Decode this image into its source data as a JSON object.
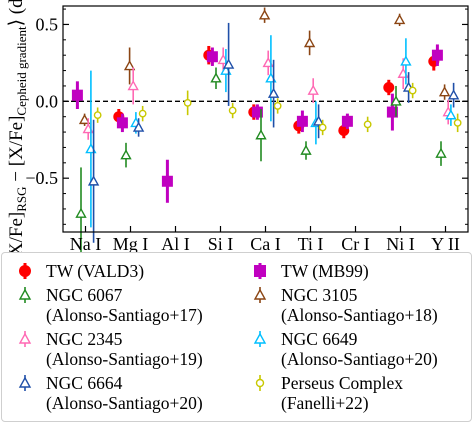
{
  "chart_data": {
    "type": "scatter",
    "ylabel": "⟨[X/Fe]RSG − [X/Fe]Cepheid gradient⟩ (dex)",
    "ylabel_parts": {
      "open": "⟨[X/Fe]",
      "sub1": "RSG",
      "mid": " − [X/Fe]",
      "sub2": "Cepheid gradient",
      "close": "⟩ (dex)"
    },
    "ylim": [
      -0.85,
      0.62
    ],
    "yticks": [
      -0.5,
      0.0,
      0.5
    ],
    "ytick_labels": [
      "−0.5",
      "0.0",
      "0.5"
    ],
    "categories": [
      "Na I",
      "Mg I",
      "Al I",
      "Si I",
      "Ca I",
      "Ti I",
      "Cr I",
      "Ni I",
      "Y II"
    ],
    "zero_line": "dashed",
    "series": [
      {
        "name": "TW (VALD3)",
        "color": "#ff0000",
        "marker": "circle",
        "points": [
          {
            "cat": 1,
            "y": -0.1,
            "err": 0.05
          },
          {
            "cat": 3,
            "y": 0.3,
            "err": 0.06
          },
          {
            "cat": 4,
            "y": -0.07,
            "err": 0.05
          },
          {
            "cat": 5,
            "y": -0.16,
            "err": 0.05
          },
          {
            "cat": 6,
            "y": -0.19,
            "err": 0.05
          },
          {
            "cat": 7,
            "y": 0.09,
            "err": 0.05
          },
          {
            "cat": 8,
            "y": 0.26,
            "err": 0.06
          }
        ]
      },
      {
        "name": "TW (MB99)",
        "color": "#c000c0",
        "marker": "square",
        "points": [
          {
            "cat": 0,
            "y": 0.04,
            "err": 0.09
          },
          {
            "cat": 1,
            "y": -0.14,
            "err": 0.06
          },
          {
            "cat": 2,
            "y": -0.52,
            "err": 0.14
          },
          {
            "cat": 3,
            "y": 0.29,
            "err": 0.06
          },
          {
            "cat": 4,
            "y": -0.07,
            "err": 0.05
          },
          {
            "cat": 5,
            "y": -0.13,
            "err": 0.07
          },
          {
            "cat": 6,
            "y": -0.13,
            "err": 0.05
          },
          {
            "cat": 7,
            "y": -0.07,
            "err": 0.12
          },
          {
            "cat": 8,
            "y": 0.3,
            "err": 0.07
          }
        ]
      },
      {
        "name": "NGC 6067 (Alonso-Santiago+17)",
        "color": "#228b22",
        "marker": "triangle-up",
        "points": [
          {
            "cat": 0,
            "y": -0.73,
            "err": 0.3
          },
          {
            "cat": 1,
            "y": -0.35,
            "err": 0.08
          },
          {
            "cat": 3,
            "y": 0.15,
            "err": 0.07
          },
          {
            "cat": 4,
            "y": -0.22,
            "err": 0.17
          },
          {
            "cat": 5,
            "y": -0.32,
            "err": 0.06
          },
          {
            "cat": 7,
            "y": 0.0,
            "err": 0.1
          },
          {
            "cat": 8,
            "y": -0.34,
            "err": 0.08
          }
        ]
      },
      {
        "name": "NGC 3105 (Alonso-Santiago+18)",
        "color": "#8b4513",
        "marker": "triangle-up",
        "points": [
          {
            "cat": 0,
            "y": -0.12,
            "err": 0.04
          },
          {
            "cat": 1,
            "y": 0.23,
            "err": 0.12
          },
          {
            "cat": 4,
            "y": 0.56,
            "err": 0.05
          },
          {
            "cat": 5,
            "y": 0.38,
            "err": 0.08
          },
          {
            "cat": 7,
            "y": 0.53,
            "err": 0.04
          },
          {
            "cat": 8,
            "y": 0.06,
            "err": 0.05
          }
        ]
      },
      {
        "name": "NGC 2345 (Alonso-Santiago+19)",
        "color": "#ff69b4",
        "marker": "triangle-up",
        "points": [
          {
            "cat": 0,
            "y": -0.18,
            "err": 0.07
          },
          {
            "cat": 1,
            "y": 0.1,
            "err": 0.12
          },
          {
            "cat": 3,
            "y": 0.27,
            "err": 0.08
          },
          {
            "cat": 4,
            "y": 0.25,
            "err": 0.08
          },
          {
            "cat": 5,
            "y": 0.07,
            "err": 0.08
          },
          {
            "cat": 7,
            "y": 0.18,
            "err": 0.1
          },
          {
            "cat": 8,
            "y": -0.07,
            "err": 0.08
          }
        ]
      },
      {
        "name": "NGC 6649 (Alonso-Santiago+20)",
        "color": "#00bfff",
        "marker": "triangle-up",
        "points": [
          {
            "cat": 0,
            "y": -0.31,
            "err": 0.51
          },
          {
            "cat": 1,
            "y": -0.14,
            "err": 0.07
          },
          {
            "cat": 3,
            "y": 0.2,
            "err": 0.14
          },
          {
            "cat": 4,
            "y": 0.15,
            "err": 0.28
          },
          {
            "cat": 5,
            "y": -0.14,
            "err": 0.14
          },
          {
            "cat": 7,
            "y": 0.26,
            "err": 0.15
          },
          {
            "cat": 8,
            "y": -0.09,
            "err": 0.07
          }
        ]
      },
      {
        "name": "NGC 6664 (Alonso-Santiago+20)",
        "color": "#1f4fa8",
        "marker": "triangle-up",
        "points": [
          {
            "cat": 0,
            "y": -0.52,
            "err": 0.4
          },
          {
            "cat": 1,
            "y": -0.17,
            "err": 0.06
          },
          {
            "cat": 3,
            "y": 0.24,
            "err": 0.27
          },
          {
            "cat": 4,
            "y": 0.05,
            "err": 0.22
          },
          {
            "cat": 5,
            "y": -0.13,
            "err": 0.11
          },
          {
            "cat": 7,
            "y": 0.09,
            "err": 0.1
          },
          {
            "cat": 8,
            "y": 0.04,
            "err": 0.08
          }
        ]
      },
      {
        "name": "Perseus Complex (Fanelli+22)",
        "color": "#c8c800",
        "marker": "circle-open",
        "points": [
          {
            "cat": 0,
            "y": -0.09,
            "err": 0.05
          },
          {
            "cat": 1,
            "y": -0.08,
            "err": 0.05
          },
          {
            "cat": 2,
            "y": -0.01,
            "err": 0.08
          },
          {
            "cat": 3,
            "y": -0.06,
            "err": 0.05
          },
          {
            "cat": 4,
            "y": -0.03,
            "err": 0.05
          },
          {
            "cat": 5,
            "y": -0.17,
            "err": 0.05
          },
          {
            "cat": 6,
            "y": -0.15,
            "err": 0.05
          },
          {
            "cat": 7,
            "y": 0.07,
            "err": 0.05
          },
          {
            "cat": 8,
            "y": -0.14,
            "err": 0.06
          }
        ]
      }
    ]
  },
  "legend": {
    "items": [
      {
        "lines": [
          "TW (VALD3)"
        ],
        "color": "#ff0000",
        "marker": "circle"
      },
      {
        "lines": [
          "TW (MB99)"
        ],
        "color": "#c000c0",
        "marker": "square"
      },
      {
        "lines": [
          "NGC 6067",
          "(Alonso-Santiago+17)"
        ],
        "color": "#228b22",
        "marker": "triangle-up"
      },
      {
        "lines": [
          "NGC 3105",
          "(Alonso-Santiago+18)"
        ],
        "color": "#8b4513",
        "marker": "triangle-up"
      },
      {
        "lines": [
          "NGC 2345",
          "(Alonso-Santiago+19)"
        ],
        "color": "#ff69b4",
        "marker": "triangle-up"
      },
      {
        "lines": [
          "NGC 6649",
          "(Alonso-Santiago+20)"
        ],
        "color": "#00bfff",
        "marker": "triangle-up"
      },
      {
        "lines": [
          "NGC 6664",
          "(Alonso-Santiago+20)"
        ],
        "color": "#1f4fa8",
        "marker": "triangle-up"
      },
      {
        "lines": [
          "Perseus Complex",
          "(Fanelli+22)"
        ],
        "color": "#c8c800",
        "marker": "circle-open"
      }
    ]
  }
}
